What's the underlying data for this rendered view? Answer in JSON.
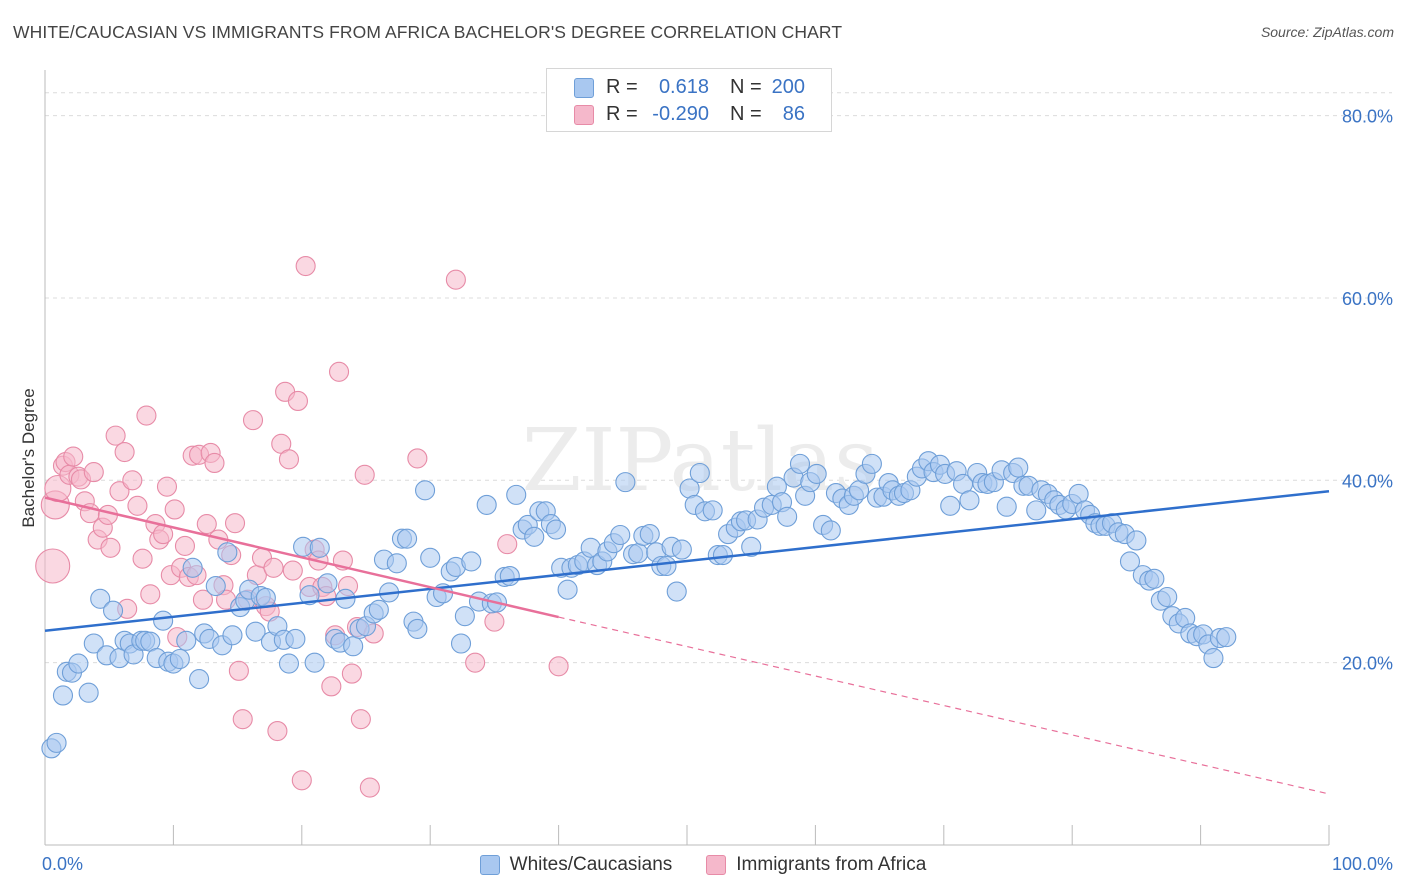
{
  "title": "WHITE/CAUCASIAN VS IMMIGRANTS FROM AFRICA BACHELOR'S DEGREE CORRELATION CHART",
  "source": "Source: ZipAtlas.com",
  "watermark": "ZIPatlas",
  "stats": [
    {
      "r_label": "R =",
      "r_value": "0.618",
      "n_label": "N =",
      "n_value": "200",
      "color": "#a9c8f0"
    },
    {
      "r_label": "R =",
      "r_value": "-0.290",
      "n_label": "N =",
      "n_value": "86",
      "color": "#f5b8cb"
    }
  ],
  "legend": [
    {
      "label": "Whites/Caucasians",
      "color": "#a9c8f0"
    },
    {
      "label": "Immigrants from Africa",
      "color": "#f5b8cb"
    }
  ],
  "chart_data": {
    "type": "scatter",
    "title": "WHITE/CAUCASIAN VS IMMIGRANTS FROM AFRICA BACHELOR'S DEGREE CORRELATION CHART",
    "xlabel": "",
    "ylabel": "Bachelor's Degree",
    "xlim": [
      0,
      100
    ],
    "ylim": [
      0,
      85
    ],
    "x_tick_labels": [
      "0.0%",
      "100.0%"
    ],
    "y_ticks": [
      20,
      40,
      60,
      80
    ],
    "y_tick_labels": [
      "20.0%",
      "40.0%",
      "60.0%",
      "80.0%"
    ],
    "grid": true,
    "legend_position": "bottom",
    "series": [
      {
        "name": "Whites/Caucasians",
        "color": "#a9c8f0",
        "edge": "#6f9fd8",
        "trend": {
          "x": [
            0,
            100
          ],
          "y": [
            23.5,
            38.8
          ],
          "color": "#2f6fcc"
        },
        "points": [
          [
            0.5,
            10.6
          ],
          [
            0.9,
            11.2
          ],
          [
            1.4,
            16.4
          ],
          [
            1.7,
            19.0
          ],
          [
            2.1,
            18.9
          ],
          [
            2.6,
            19.9
          ],
          [
            3.4,
            16.7
          ],
          [
            3.8,
            22.1
          ],
          [
            4.3,
            27.0
          ],
          [
            4.8,
            20.8
          ],
          [
            5.3,
            25.7
          ],
          [
            5.8,
            20.5
          ],
          [
            6.2,
            22.4
          ],
          [
            6.6,
            22.1
          ],
          [
            6.9,
            20.9
          ],
          [
            7.5,
            22.4
          ],
          [
            7.8,
            22.4
          ],
          [
            8.2,
            22.3
          ],
          [
            8.7,
            20.5
          ],
          [
            9.2,
            24.6
          ],
          [
            9.6,
            20.1
          ],
          [
            10.0,
            19.9
          ],
          [
            10.5,
            20.4
          ],
          [
            11.0,
            22.4
          ],
          [
            11.5,
            30.4
          ],
          [
            12.0,
            18.2
          ],
          [
            12.4,
            23.2
          ],
          [
            12.8,
            22.6
          ],
          [
            13.3,
            28.4
          ],
          [
            13.8,
            21.9
          ],
          [
            14.2,
            32.1
          ],
          [
            14.6,
            23.0
          ],
          [
            15.2,
            26.1
          ],
          [
            15.6,
            26.8
          ],
          [
            15.9,
            28.0
          ],
          [
            16.4,
            23.4
          ],
          [
            16.8,
            27.3
          ],
          [
            17.2,
            27.1
          ],
          [
            17.6,
            22.3
          ],
          [
            18.1,
            24.0
          ],
          [
            18.6,
            22.5
          ],
          [
            19.0,
            19.9
          ],
          [
            19.5,
            22.6
          ],
          [
            20.1,
            32.7
          ],
          [
            20.6,
            27.4
          ],
          [
            21.0,
            20.0
          ],
          [
            21.4,
            32.6
          ],
          [
            22.0,
            28.7
          ],
          [
            22.6,
            22.6
          ],
          [
            23.0,
            22.2
          ],
          [
            23.4,
            27.0
          ],
          [
            24.0,
            21.8
          ],
          [
            24.5,
            23.7
          ],
          [
            25.0,
            24.0
          ],
          [
            25.6,
            25.4
          ],
          [
            26.0,
            25.8
          ],
          [
            26.4,
            31.3
          ],
          [
            26.8,
            27.7
          ],
          [
            27.4,
            30.9
          ],
          [
            27.8,
            33.6
          ],
          [
            28.2,
            33.6
          ],
          [
            28.7,
            24.5
          ],
          [
            29.0,
            23.7
          ],
          [
            29.6,
            38.9
          ],
          [
            30.0,
            31.5
          ],
          [
            30.5,
            27.2
          ],
          [
            31.0,
            27.6
          ],
          [
            31.6,
            30.0
          ],
          [
            32.0,
            30.5
          ],
          [
            32.4,
            22.1
          ],
          [
            32.7,
            25.1
          ],
          [
            33.2,
            31.1
          ],
          [
            33.8,
            26.7
          ],
          [
            34.4,
            37.3
          ],
          [
            34.8,
            26.5
          ],
          [
            35.2,
            26.6
          ],
          [
            35.8,
            29.4
          ],
          [
            36.2,
            29.5
          ],
          [
            36.7,
            38.4
          ],
          [
            37.2,
            34.6
          ],
          [
            37.6,
            35.1
          ],
          [
            38.1,
            33.8
          ],
          [
            38.5,
            36.6
          ],
          [
            39.0,
            36.6
          ],
          [
            39.4,
            35.2
          ],
          [
            39.8,
            34.6
          ],
          [
            40.2,
            30.4
          ],
          [
            40.7,
            28.0
          ],
          [
            41.0,
            30.4
          ],
          [
            41.5,
            30.7
          ],
          [
            42.0,
            31.1
          ],
          [
            42.5,
            32.6
          ],
          [
            43.0,
            30.7
          ],
          [
            43.4,
            31.1
          ],
          [
            43.8,
            32.2
          ],
          [
            44.3,
            33.1
          ],
          [
            44.8,
            34.0
          ],
          [
            45.2,
            39.8
          ],
          [
            45.8,
            31.9
          ],
          [
            46.2,
            32.0
          ],
          [
            46.6,
            33.9
          ],
          [
            47.1,
            34.1
          ],
          [
            47.6,
            32.1
          ],
          [
            48.0,
            30.6
          ],
          [
            48.4,
            30.6
          ],
          [
            48.8,
            32.7
          ],
          [
            49.2,
            27.8
          ],
          [
            49.6,
            32.4
          ],
          [
            50.2,
            39.1
          ],
          [
            50.6,
            37.3
          ],
          [
            51.0,
            40.8
          ],
          [
            51.4,
            36.6
          ],
          [
            52.0,
            36.7
          ],
          [
            52.4,
            31.8
          ],
          [
            52.8,
            31.8
          ],
          [
            53.2,
            34.1
          ],
          [
            53.8,
            34.8
          ],
          [
            54.2,
            35.5
          ],
          [
            54.6,
            35.6
          ],
          [
            55.0,
            32.7
          ],
          [
            55.5,
            35.7
          ],
          [
            56.0,
            37.0
          ],
          [
            56.6,
            37.3
          ],
          [
            57.0,
            39.3
          ],
          [
            57.4,
            37.6
          ],
          [
            57.8,
            36.0
          ],
          [
            58.3,
            40.3
          ],
          [
            58.8,
            41.8
          ],
          [
            59.2,
            38.3
          ],
          [
            59.6,
            39.8
          ],
          [
            60.1,
            40.7
          ],
          [
            60.6,
            35.1
          ],
          [
            61.2,
            34.5
          ],
          [
            61.6,
            38.6
          ],
          [
            62.1,
            38.0
          ],
          [
            62.6,
            37.3
          ],
          [
            63.0,
            38.3
          ],
          [
            63.4,
            38.9
          ],
          [
            63.9,
            40.7
          ],
          [
            64.4,
            41.8
          ],
          [
            64.8,
            38.1
          ],
          [
            65.3,
            38.2
          ],
          [
            65.7,
            39.7
          ],
          [
            66.0,
            38.9
          ],
          [
            66.5,
            38.3
          ],
          [
            66.9,
            38.6
          ],
          [
            67.4,
            38.9
          ],
          [
            67.9,
            40.4
          ],
          [
            68.3,
            41.3
          ],
          [
            68.8,
            42.1
          ],
          [
            69.2,
            40.9
          ],
          [
            69.7,
            41.7
          ],
          [
            70.1,
            40.7
          ],
          [
            70.5,
            37.2
          ],
          [
            71.0,
            41.0
          ],
          [
            71.5,
            39.6
          ],
          [
            72.0,
            37.8
          ],
          [
            72.6,
            40.8
          ],
          [
            73.0,
            39.7
          ],
          [
            73.4,
            39.6
          ],
          [
            73.9,
            39.8
          ],
          [
            74.5,
            41.1
          ],
          [
            74.9,
            37.1
          ],
          [
            75.4,
            40.8
          ],
          [
            75.8,
            41.4
          ],
          [
            76.2,
            39.4
          ],
          [
            76.6,
            39.4
          ],
          [
            77.2,
            36.7
          ],
          [
            77.6,
            38.9
          ],
          [
            78.1,
            38.5
          ],
          [
            78.6,
            37.8
          ],
          [
            79.0,
            37.3
          ],
          [
            79.5,
            36.8
          ],
          [
            80.0,
            37.4
          ],
          [
            80.5,
            38.5
          ],
          [
            81.0,
            36.7
          ],
          [
            81.4,
            36.2
          ],
          [
            81.8,
            35.3
          ],
          [
            82.2,
            35.0
          ],
          [
            82.6,
            35.0
          ],
          [
            83.1,
            35.3
          ],
          [
            83.6,
            34.3
          ],
          [
            84.1,
            34.1
          ],
          [
            84.5,
            31.1
          ],
          [
            85.0,
            33.4
          ],
          [
            85.5,
            29.6
          ],
          [
            86.0,
            29.0
          ],
          [
            86.4,
            29.2
          ],
          [
            86.9,
            26.8
          ],
          [
            87.4,
            27.2
          ],
          [
            87.8,
            25.1
          ],
          [
            88.3,
            24.3
          ],
          [
            88.8,
            24.9
          ],
          [
            89.2,
            23.2
          ],
          [
            89.7,
            22.9
          ],
          [
            90.2,
            23.1
          ],
          [
            90.6,
            22.0
          ],
          [
            91.0,
            20.5
          ],
          [
            91.5,
            22.7
          ],
          [
            92.0,
            22.8
          ]
        ]
      },
      {
        "name": "Immigrants from Africa",
        "color": "#f5b8cb",
        "edge": "#e78ba7",
        "trend": {
          "x": [
            0,
            40
          ],
          "y": [
            38.1,
            25.0
          ],
          "dashed_to": [
            100,
            5.6
          ],
          "color": "#e8709a"
        },
        "points": [
          [
            0.6,
            30.6
          ],
          [
            0.8,
            37.3
          ],
          [
            1.0,
            39.1
          ],
          [
            1.4,
            41.6
          ],
          [
            1.6,
            42.0
          ],
          [
            1.9,
            40.6
          ],
          [
            2.2,
            42.6
          ],
          [
            2.6,
            40.4
          ],
          [
            2.8,
            40.1
          ],
          [
            3.1,
            37.7
          ],
          [
            3.5,
            36.4
          ],
          [
            3.8,
            40.9
          ],
          [
            4.1,
            33.5
          ],
          [
            4.5,
            34.8
          ],
          [
            4.9,
            36.2
          ],
          [
            5.1,
            32.6
          ],
          [
            5.5,
            44.9
          ],
          [
            5.8,
            38.8
          ],
          [
            6.2,
            43.1
          ],
          [
            6.4,
            25.9
          ],
          [
            6.8,
            40.0
          ],
          [
            7.2,
            37.2
          ],
          [
            7.6,
            31.4
          ],
          [
            7.9,
            47.1
          ],
          [
            8.2,
            27.5
          ],
          [
            8.6,
            35.2
          ],
          [
            8.9,
            33.5
          ],
          [
            9.2,
            34.1
          ],
          [
            9.5,
            39.3
          ],
          [
            9.8,
            29.6
          ],
          [
            10.1,
            36.8
          ],
          [
            10.3,
            22.8
          ],
          [
            10.6,
            30.4
          ],
          [
            10.9,
            32.8
          ],
          [
            11.2,
            29.4
          ],
          [
            11.5,
            42.7
          ],
          [
            11.8,
            29.6
          ],
          [
            12.0,
            42.8
          ],
          [
            12.3,
            26.9
          ],
          [
            12.6,
            35.2
          ],
          [
            12.9,
            43.0
          ],
          [
            13.2,
            41.9
          ],
          [
            13.5,
            33.5
          ],
          [
            13.9,
            28.5
          ],
          [
            14.1,
            26.9
          ],
          [
            14.5,
            31.8
          ],
          [
            14.8,
            35.3
          ],
          [
            15.1,
            19.1
          ],
          [
            15.4,
            13.8
          ],
          [
            15.8,
            26.9
          ],
          [
            16.2,
            46.6
          ],
          [
            16.5,
            29.6
          ],
          [
            16.9,
            31.5
          ],
          [
            17.2,
            26.2
          ],
          [
            17.5,
            25.6
          ],
          [
            17.8,
            30.4
          ],
          [
            18.1,
            12.5
          ],
          [
            18.4,
            44.0
          ],
          [
            18.7,
            49.7
          ],
          [
            19.0,
            42.3
          ],
          [
            19.3,
            30.1
          ],
          [
            19.7,
            48.7
          ],
          [
            20.0,
            7.1
          ],
          [
            20.3,
            63.5
          ],
          [
            20.6,
            28.3
          ],
          [
            21.0,
            32.4
          ],
          [
            21.3,
            31.2
          ],
          [
            21.6,
            28.3
          ],
          [
            21.9,
            27.3
          ],
          [
            22.3,
            17.4
          ],
          [
            22.6,
            23.0
          ],
          [
            22.9,
            51.9
          ],
          [
            23.2,
            31.2
          ],
          [
            23.6,
            28.4
          ],
          [
            23.9,
            18.8
          ],
          [
            24.3,
            23.9
          ],
          [
            24.6,
            13.8
          ],
          [
            24.9,
            40.6
          ],
          [
            25.3,
            6.3
          ],
          [
            25.6,
            23.2
          ],
          [
            29.0,
            42.4
          ],
          [
            32.0,
            62.0
          ],
          [
            33.5,
            20.0
          ],
          [
            35.0,
            24.5
          ],
          [
            36.0,
            33.0
          ],
          [
            40.0,
            19.6
          ]
        ]
      }
    ]
  }
}
